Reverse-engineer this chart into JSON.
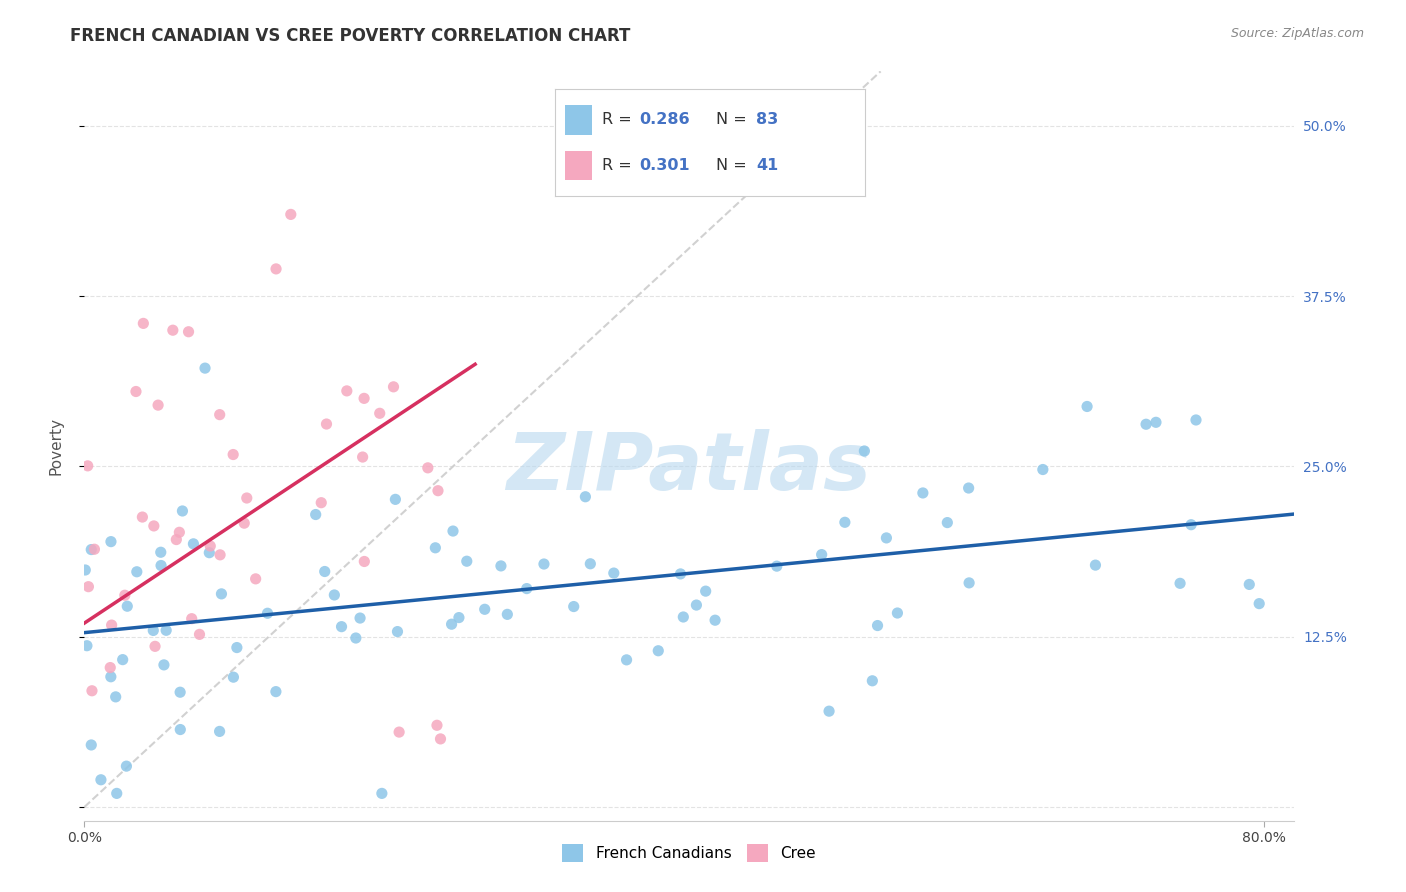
{
  "title": "FRENCH CANADIAN VS CREE POVERTY CORRELATION CHART",
  "source": "Source: ZipAtlas.com",
  "ylabel": "Poverty",
  "watermark": "ZIPatlas",
  "ytick_vals": [
    0.0,
    0.125,
    0.25,
    0.375,
    0.5
  ],
  "ytick_labels": [
    "",
    "12.5%",
    "25.0%",
    "37.5%",
    "50.0%"
  ],
  "xtick_vals": [
    0.0,
    0.8
  ],
  "xtick_labels": [
    "0.0%",
    "80.0%"
  ],
  "xlim": [
    0.0,
    0.82
  ],
  "ylim": [
    -0.01,
    0.54
  ],
  "legend_label_blue": "French Canadians",
  "legend_label_pink": "Cree",
  "blue_scatter_color": "#8ec6e8",
  "pink_scatter_color": "#f5a8bf",
  "blue_line_color": "#1e5fa8",
  "pink_line_color": "#d63060",
  "diagonal_color": "#cccccc",
  "grid_color": "#dddddd",
  "background_color": "#ffffff",
  "title_fontsize": 12,
  "source_fontsize": 9,
  "tick_fontsize": 10,
  "right_tick_color": "#4472c4",
  "watermark_color": "#b8d8ef",
  "r_blue": "0.286",
  "n_blue": "83",
  "r_pink": "0.301",
  "n_pink": "41",
  "legend_val_color": "#4472c4",
  "legend_label_color": "#333333",
  "blue_line_x0": 0.0,
  "blue_line_x1": 0.82,
  "blue_line_y0": 0.128,
  "blue_line_y1": 0.215,
  "pink_line_x0": 0.0,
  "pink_line_x1": 0.265,
  "pink_line_y0": 0.135,
  "pink_line_y1": 0.325
}
